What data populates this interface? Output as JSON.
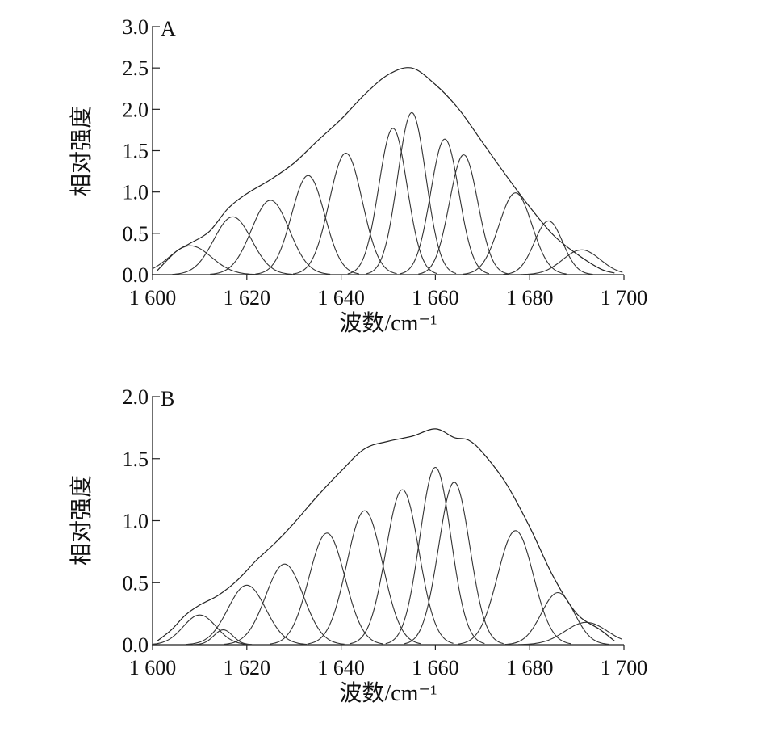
{
  "chart_data": [
    {
      "type": "line",
      "panel_label": "A",
      "xlabel": "波数/cm⁻¹",
      "ylabel": "相对强度",
      "xlim": [
        1600,
        1700
      ],
      "ylim": [
        0,
        3.0
      ],
      "x_ticks": [
        1600,
        1620,
        1640,
        1660,
        1680,
        1700
      ],
      "x_tick_labels": [
        "1 600",
        "1 620",
        "1 640",
        "1 660",
        "1 680",
        "1 700"
      ],
      "y_ticks": [
        0,
        0.5,
        1.0,
        1.5,
        2.0,
        2.5,
        3.0
      ],
      "y_tick_labels": [
        "0.0",
        "0.5",
        "1.0",
        "1.5",
        "2.0",
        "2.5",
        "3.0"
      ],
      "grid": false,
      "envelope": {
        "x": [
          1601,
          1605,
          1608,
          1612,
          1616,
          1620,
          1625,
          1630,
          1635,
          1640,
          1645,
          1650,
          1655,
          1660,
          1665,
          1670,
          1675,
          1680,
          1685,
          1690,
          1695,
          1698
        ],
        "y": [
          0.05,
          0.28,
          0.38,
          0.52,
          0.8,
          0.98,
          1.15,
          1.35,
          1.62,
          1.88,
          2.18,
          2.42,
          2.5,
          2.3,
          2.0,
          1.6,
          1.2,
          0.82,
          0.48,
          0.25,
          0.07,
          0.02
        ]
      },
      "peaks": [
        {
          "center": 1608,
          "height": 0.35,
          "width": 4.5
        },
        {
          "center": 1617,
          "height": 0.7,
          "width": 4.0
        },
        {
          "center": 1625,
          "height": 0.9,
          "width": 4.0
        },
        {
          "center": 1633,
          "height": 1.2,
          "width": 3.5
        },
        {
          "center": 1641,
          "height": 1.47,
          "width": 3.5
        },
        {
          "center": 1651,
          "height": 1.77,
          "width": 3.0
        },
        {
          "center": 1655,
          "height": 1.96,
          "width": 3.0
        },
        {
          "center": 1662,
          "height": 1.64,
          "width": 3.0
        },
        {
          "center": 1666,
          "height": 1.45,
          "width": 3.0
        },
        {
          "center": 1677,
          "height": 0.99,
          "width": 3.5
        },
        {
          "center": 1684,
          "height": 0.65,
          "width": 3.0
        },
        {
          "center": 1691,
          "height": 0.3,
          "width": 4.0
        }
      ]
    },
    {
      "type": "line",
      "panel_label": "B",
      "xlabel": "波数/cm⁻¹",
      "ylabel": "相对强度",
      "xlim": [
        1600,
        1700
      ],
      "ylim": [
        0,
        2.0
      ],
      "x_ticks": [
        1600,
        1620,
        1640,
        1660,
        1680,
        1700
      ],
      "x_tick_labels": [
        "1 600",
        "1 620",
        "1 640",
        "1 660",
        "1 680",
        "1 700"
      ],
      "y_ticks": [
        0,
        0.5,
        1.0,
        1.5,
        2.0
      ],
      "y_tick_labels": [
        "0.0",
        "0.5",
        "1.0",
        "1.5",
        "2.0"
      ],
      "grid": false,
      "envelope": {
        "x": [
          1601,
          1604,
          1607,
          1610,
          1614,
          1618,
          1622,
          1626,
          1630,
          1635,
          1640,
          1645,
          1650,
          1655,
          1660,
          1664,
          1667,
          1670,
          1675,
          1680,
          1685,
          1690,
          1695,
          1698
        ],
        "y": [
          0.03,
          0.12,
          0.24,
          0.32,
          0.4,
          0.52,
          0.68,
          0.82,
          0.98,
          1.2,
          1.4,
          1.58,
          1.64,
          1.68,
          1.74,
          1.67,
          1.65,
          1.55,
          1.3,
          0.95,
          0.55,
          0.25,
          0.12,
          0.03
        ]
      },
      "peaks": [
        {
          "center": 1610,
          "height": 0.24,
          "width": 3.5
        },
        {
          "center": 1615,
          "height": 0.12,
          "width": 2.0
        },
        {
          "center": 1620,
          "height": 0.48,
          "width": 4.0
        },
        {
          "center": 1628,
          "height": 0.65,
          "width": 4.0
        },
        {
          "center": 1637,
          "height": 0.9,
          "width": 3.8
        },
        {
          "center": 1645,
          "height": 1.08,
          "width": 3.8
        },
        {
          "center": 1653,
          "height": 1.25,
          "width": 3.5
        },
        {
          "center": 1660,
          "height": 1.43,
          "width": 3.3
        },
        {
          "center": 1664,
          "height": 1.31,
          "width": 3.3
        },
        {
          "center": 1677,
          "height": 0.92,
          "width": 3.8
        },
        {
          "center": 1686,
          "height": 0.42,
          "width": 3.5
        },
        {
          "center": 1692,
          "height": 0.18,
          "width": 4.5
        }
      ]
    }
  ]
}
